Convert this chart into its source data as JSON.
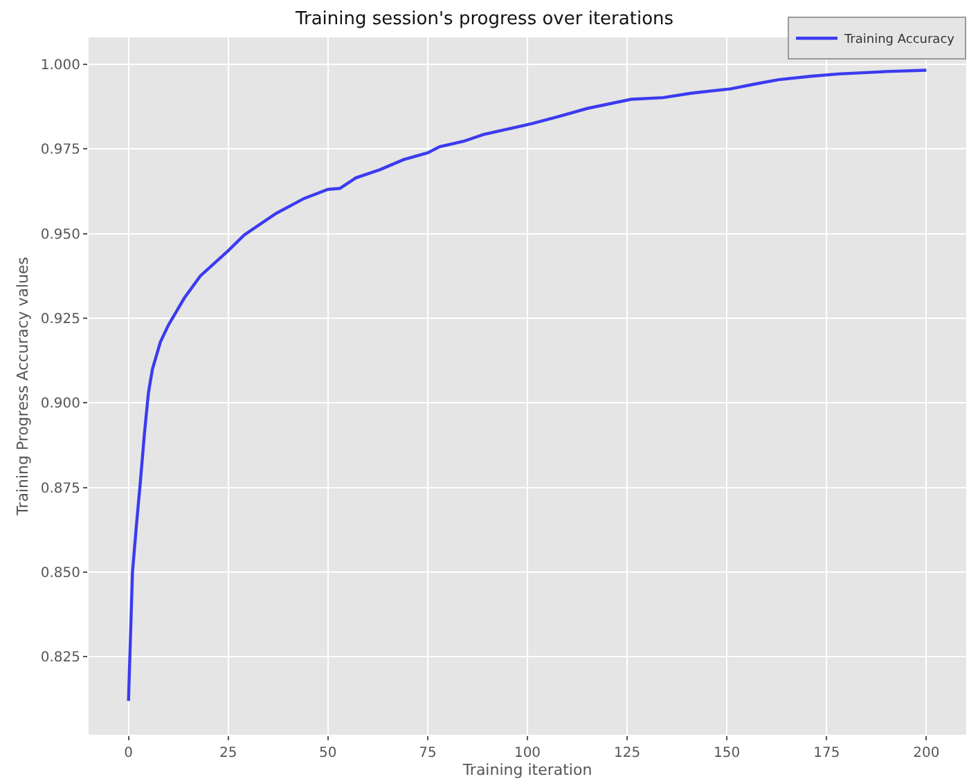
{
  "chart_data": {
    "type": "line",
    "title": "Training session's progress over iterations",
    "xlabel": "Training iteration",
    "ylabel": "Training Progress Accuracy values",
    "x": [
      0,
      1,
      2,
      3,
      4,
      5,
      6,
      8,
      10,
      14,
      18,
      25,
      29,
      37,
      44,
      50,
      53,
      57,
      63,
      69,
      75,
      78,
      84,
      89,
      101,
      108,
      115,
      126,
      134,
      141,
      151,
      157,
      163,
      171,
      178,
      190,
      200
    ],
    "series": [
      {
        "name": "Training Accuracy",
        "color": "#3b3bf0",
        "values": [
          0.812,
          0.85,
          0.864,
          0.877,
          0.891,
          0.903,
          0.91,
          0.918,
          0.923,
          0.931,
          0.9375,
          0.945,
          0.9496,
          0.956,
          0.9604,
          0.9631,
          0.9634,
          0.9665,
          0.9689,
          0.9719,
          0.9739,
          0.9757,
          0.9773,
          0.9793,
          0.9825,
          0.9847,
          0.987,
          0.9897,
          0.9902,
          0.9915,
          0.9928,
          0.9942,
          0.9955,
          0.9965,
          0.9972,
          0.9979,
          0.9983
        ]
      }
    ],
    "xlim": [
      -10,
      210
    ],
    "xticks": [
      0,
      25,
      50,
      75,
      100,
      125,
      150,
      175,
      200
    ],
    "ylim": [
      0.802,
      1.008
    ],
    "yticks": [
      0.825,
      {
        "value": 0.85,
        "label": "0.850"
      },
      0.875,
      {
        "value": 0.9,
        "label": "0.900"
      },
      0.925,
      {
        "value": 0.95,
        "label": "0.950"
      },
      0.975,
      {
        "value": 1,
        "label": "1.000"
      }
    ],
    "grid": true,
    "legend": "top right",
    "marker": "none",
    "line_style": "solid"
  }
}
